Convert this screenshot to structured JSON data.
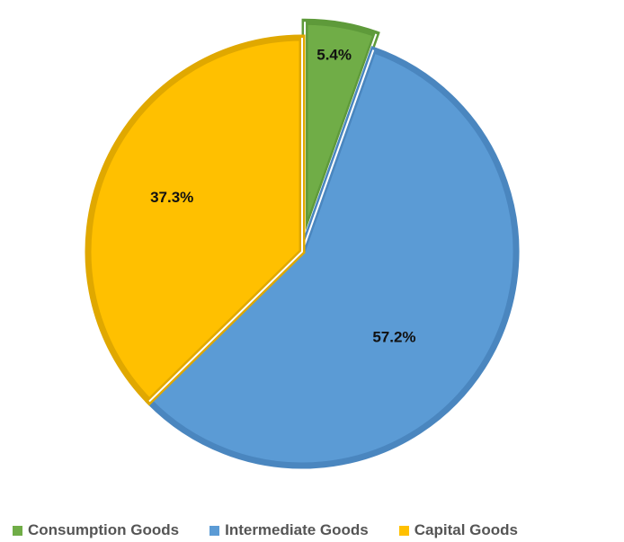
{
  "chart_data": {
    "type": "pie",
    "title": "",
    "categories": [
      "Consumption Goods",
      "Intermediate Goods",
      "Capital Goods"
    ],
    "values": [
      5.4,
      57.2,
      37.3
    ],
    "value_labels": [
      "5.4%",
      "57.2%",
      "37.3%"
    ],
    "unit": "%",
    "colors": [
      "#70AD47",
      "#5B9BD5",
      "#FFC000"
    ],
    "edge_colors": [
      "#5E9A3A",
      "#4A86BF",
      "#E0A800"
    ],
    "exploded": [
      "Consumption Goods"
    ],
    "start": "12 o'clock, clockwise",
    "legend_position": "bottom"
  },
  "legend": {
    "items": [
      {
        "label": "Consumption Goods",
        "color": "#70AD47"
      },
      {
        "label": "Intermediate Goods",
        "color": "#5B9BD5"
      },
      {
        "label": "Capital Goods",
        "color": "#FFC000"
      }
    ]
  }
}
